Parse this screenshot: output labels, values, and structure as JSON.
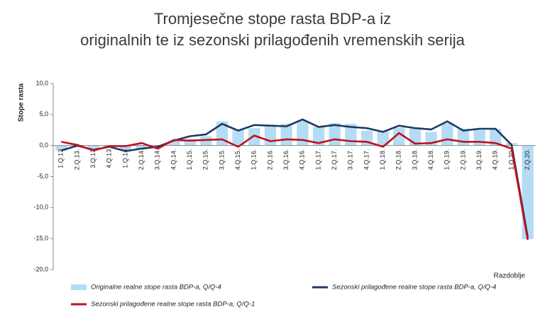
{
  "chart_data": {
    "type": "bar_line",
    "title": [
      "Tromjesečne stope rasta BDP-a iz",
      "originalnih te iz sezonski prilagođenih vremenskih serija"
    ],
    "y_label": "Stope rasta",
    "x_label": "Razdoblje",
    "categories": [
      "1.Q.13",
      "2.Q.13.",
      "3.Q.13",
      "4.Q.13",
      "1.Q.14",
      "2.Q.14.",
      "3.Q.14.",
      "4.Q.14.",
      "1.Q.15.",
      "2.Q.15.",
      "3.Q.15.",
      "4.Q.15.",
      "1.Q.16.",
      "2.Q.16.",
      "3.Q.16.",
      "4.Q.16.",
      "1.Q.17.",
      "2.Q.17.",
      "3.Q.17.",
      "4.Q.17.",
      "1.Q.18.",
      "2.Q.18.",
      "3.Q.18.",
      "4.Q.18.",
      "1.Q.19.",
      "2.Q.19.",
      "3.Q.19.",
      "4.Q.19.",
      "1.Q.20.",
      "2.Q.20."
    ],
    "series": [
      {
        "name": "Originalne realne stope rasta BDP-a, Q/Q-4",
        "kind": "bar",
        "color": "#b4dcf5",
        "values": [
          -0.8,
          -0.3,
          -0.5,
          -0.3,
          -0.8,
          -0.6,
          -0.3,
          0.8,
          1.0,
          1.5,
          3.9,
          2.6,
          2.8,
          3.3,
          3.5,
          4.0,
          3.0,
          3.6,
          3.5,
          2.4,
          2.3,
          2.9,
          2.7,
          2.2,
          3.6,
          2.7,
          2.5,
          2.7,
          0.4,
          -15.1
        ]
      },
      {
        "name": "Sezonski prilagođene realne stope rasta BDP-a, Q/Q-4",
        "kind": "line",
        "color": "#1f3a5f",
        "values": [
          -0.8,
          0.0,
          -0.7,
          -0.2,
          -0.9,
          -0.5,
          -0.2,
          0.8,
          1.5,
          1.8,
          3.5,
          2.4,
          3.3,
          3.2,
          3.1,
          4.2,
          3.0,
          3.3,
          3.0,
          2.8,
          2.2,
          3.2,
          2.8,
          2.6,
          3.9,
          2.4,
          2.7,
          2.7,
          0.1,
          -14.8
        ]
      },
      {
        "name": "Sezonski prilagođene realne stope rasta BDP-a, Q/Q-1",
        "kind": "line",
        "color": "#c0111f",
        "values": [
          0.6,
          0.1,
          -0.8,
          -0.1,
          -0.1,
          0.4,
          -0.5,
          0.9,
          0.8,
          0.9,
          1.0,
          -0.2,
          1.6,
          0.7,
          1.0,
          0.9,
          0.4,
          1.0,
          0.7,
          0.6,
          -0.2,
          2.0,
          0.3,
          0.4,
          1.0,
          0.6,
          0.6,
          0.4,
          -0.5,
          -15.2
        ]
      }
    ],
    "ylim": [
      -20,
      10
    ],
    "yticks": [
      {
        "value": -20,
        "label": "-20,0"
      },
      {
        "value": -15,
        "label": "-15,0"
      },
      {
        "value": -10,
        "label": "-10,0"
      },
      {
        "value": -5,
        "label": "-5,0"
      },
      {
        "value": 0,
        "label": "0,0"
      },
      {
        "value": 5,
        "label": "5,0"
      },
      {
        "value": 10,
        "label": "10,0"
      }
    ],
    "grid": false
  }
}
